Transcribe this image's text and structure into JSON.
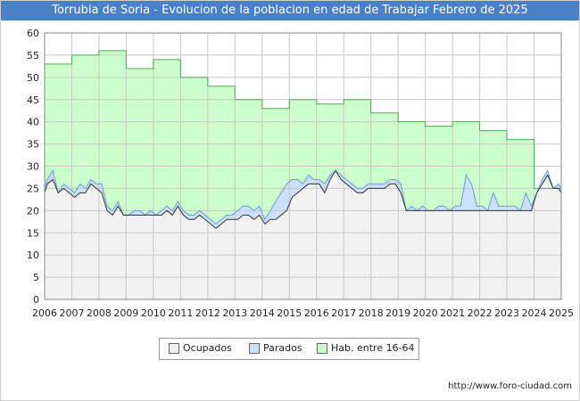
{
  "header": {
    "title": "Torrubia de Soria - Evolucion de la poblacion en edad de Trabajar Febrero de 2025"
  },
  "colors": {
    "title_bg": "#4a80c8",
    "hab_fill": "#ccffcc",
    "hab_line": "#55aa55",
    "parados_fill": "#cce0ff",
    "parados_line": "#6a9ed8",
    "ocupados_fill": "#f2f2f2",
    "ocupados_line": "#333333",
    "grid": "#c8c8c8"
  },
  "chart_data": {
    "type": "area",
    "title": "Torrubia de Soria - Evolucion de la poblacion en edad de Trabajar Febrero de 2025",
    "xlabel": "",
    "ylabel": "",
    "xlim": [
      2006,
      2025
    ],
    "ylim": [
      0,
      60
    ],
    "grid": true,
    "legend_position": "bottom-center",
    "x_ticks": [
      "2006",
      "2007",
      "2008",
      "2009",
      "2010",
      "2011",
      "2012",
      "2013",
      "2014",
      "2015",
      "2016",
      "2017",
      "2018",
      "2019",
      "2020",
      "2021",
      "2022",
      "2023",
      "2024",
      "2025"
    ],
    "y_ticks": [
      "0",
      "5",
      "10",
      "15",
      "20",
      "25",
      "30",
      "35",
      "40",
      "45",
      "50",
      "55",
      "60"
    ],
    "series": [
      {
        "name": "Hab. entre 16-64",
        "type": "step",
        "x": [
          2006,
          2007,
          2008,
          2009,
          2010,
          2011,
          2012,
          2013,
          2014,
          2015,
          2016,
          2017,
          2018,
          2019,
          2020,
          2021,
          2022,
          2023,
          2024
        ],
        "values": [
          53,
          55,
          56,
          52,
          54,
          50,
          48,
          45,
          43,
          45,
          44,
          45,
          42,
          40,
          39,
          40,
          38,
          36,
          25
        ]
      },
      {
        "name": "Parados",
        "type": "line",
        "x": [
          2006,
          2006.1,
          2006.3,
          2006.5,
          2006.7,
          2006.9,
          2007.1,
          2007.3,
          2007.5,
          2007.7,
          2007.9,
          2008.1,
          2008.3,
          2008.5,
          2008.7,
          2008.9,
          2009.1,
          2009.3,
          2009.5,
          2009.7,
          2009.9,
          2010.1,
          2010.3,
          2010.5,
          2010.7,
          2010.9,
          2011.1,
          2011.3,
          2011.5,
          2011.7,
          2011.9,
          2012.1,
          2012.3,
          2012.5,
          2012.7,
          2012.9,
          2013.1,
          2013.3,
          2013.5,
          2013.7,
          2013.9,
          2014.1,
          2014.3,
          2014.5,
          2014.7,
          2014.9,
          2015.1,
          2015.3,
          2015.5,
          2015.7,
          2015.9,
          2016.1,
          2016.3,
          2016.5,
          2016.7,
          2016.9,
          2017.1,
          2017.3,
          2017.5,
          2017.7,
          2017.9,
          2018.1,
          2018.3,
          2018.5,
          2018.7,
          2018.9,
          2019.1,
          2019.3,
          2019.5,
          2019.7,
          2019.9,
          2020.1,
          2020.3,
          2020.5,
          2020.7,
          2020.9,
          2021.1,
          2021.3,
          2021.5,
          2021.7,
          2021.9,
          2022.1,
          2022.3,
          2022.5,
          2022.7,
          2022.9,
          2023.1,
          2023.3,
          2023.5,
          2023.7,
          2023.9,
          2024.1,
          2024.3,
          2024.5,
          2024.7,
          2024.9,
          2025
        ],
        "values": [
          25,
          27,
          29,
          24,
          26,
          25,
          24,
          26,
          25,
          27,
          26,
          26,
          21,
          20,
          22,
          19,
          19,
          20,
          20,
          19,
          20,
          19,
          20,
          21,
          20,
          22,
          20,
          19,
          19,
          20,
          19,
          18,
          17,
          18,
          19,
          19,
          20,
          21,
          21,
          20,
          21,
          18,
          20,
          22,
          24,
          26,
          27,
          27,
          26,
          28,
          27,
          27,
          26,
          28,
          29,
          28,
          27,
          26,
          25,
          25,
          26,
          26,
          26,
          26,
          27,
          27,
          26,
          20,
          21,
          20,
          21,
          20,
          20,
          21,
          21,
          20,
          21,
          21,
          28,
          26,
          21,
          21,
          20,
          24,
          21,
          21,
          21,
          21,
          20,
          24,
          21,
          24,
          27,
          29,
          25,
          26,
          25
        ]
      },
      {
        "name": "Ocupados",
        "type": "line",
        "x": [
          2006,
          2006.1,
          2006.3,
          2006.5,
          2006.7,
          2006.9,
          2007.1,
          2007.3,
          2007.5,
          2007.7,
          2007.9,
          2008.1,
          2008.3,
          2008.5,
          2008.7,
          2008.9,
          2009.1,
          2009.3,
          2009.5,
          2009.7,
          2009.9,
          2010.1,
          2010.3,
          2010.5,
          2010.7,
          2010.9,
          2011.1,
          2011.3,
          2011.5,
          2011.7,
          2011.9,
          2012.1,
          2012.3,
          2012.5,
          2012.7,
          2012.9,
          2013.1,
          2013.3,
          2013.5,
          2013.7,
          2013.9,
          2014.1,
          2014.3,
          2014.5,
          2014.7,
          2014.9,
          2015.1,
          2015.3,
          2015.5,
          2015.7,
          2015.9,
          2016.1,
          2016.3,
          2016.5,
          2016.7,
          2016.9,
          2017.1,
          2017.3,
          2017.5,
          2017.7,
          2017.9,
          2018.1,
          2018.3,
          2018.5,
          2018.7,
          2018.9,
          2019.1,
          2019.3,
          2019.5,
          2019.7,
          2019.9,
          2020.1,
          2020.3,
          2020.5,
          2020.7,
          2020.9,
          2021.1,
          2021.3,
          2021.5,
          2021.7,
          2021.9,
          2022.1,
          2022.3,
          2022.5,
          2022.7,
          2022.9,
          2023.1,
          2023.3,
          2023.5,
          2023.7,
          2023.9,
          2024.1,
          2024.3,
          2024.5,
          2024.7,
          2024.9,
          2025
        ],
        "values": [
          24,
          26,
          27,
          24,
          25,
          24,
          23,
          24,
          24,
          26,
          25,
          24,
          20,
          19,
          21,
          19,
          19,
          19,
          19,
          19,
          19,
          19,
          19,
          20,
          19,
          21,
          19,
          18,
          18,
          19,
          18,
          17,
          16,
          17,
          18,
          18,
          18,
          19,
          19,
          18,
          19,
          17,
          18,
          18,
          19,
          20,
          23,
          24,
          25,
          26,
          26,
          26,
          24,
          27,
          29,
          27,
          26,
          25,
          24,
          24,
          25,
          25,
          25,
          25,
          26,
          26,
          24,
          20,
          20,
          20,
          20,
          20,
          20,
          20,
          20,
          20,
          20,
          20,
          20,
          20,
          20,
          20,
          20,
          20,
          20,
          20,
          20,
          20,
          20,
          20,
          20,
          24,
          26,
          28,
          25,
          25,
          24
        ]
      }
    ]
  },
  "legend": {
    "items": [
      {
        "label": "Ocupados"
      },
      {
        "label": "Parados"
      },
      {
        "label": "Hab. entre 16-64"
      }
    ]
  },
  "footer": {
    "url": "http://www.foro-ciudad.com"
  }
}
